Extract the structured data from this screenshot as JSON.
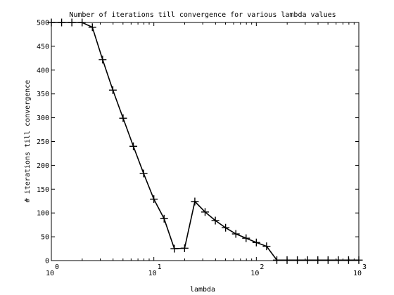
{
  "chart_data": {
    "type": "line",
    "title": "Number of iterations till convergence for various lambda values",
    "xlabel": "lambda",
    "ylabel": "# iterations till convergence",
    "xscale": "log",
    "xlim": [
      1,
      1000
    ],
    "ylim": [
      0,
      500
    ],
    "grid": false,
    "x_ticks": [
      {
        "base": "10",
        "exp": "0"
      },
      {
        "base": "10",
        "exp": "1"
      },
      {
        "base": "10",
        "exp": "2"
      },
      {
        "base": "10",
        "exp": "3"
      }
    ],
    "y_ticks": [
      "0",
      "50",
      "100",
      "150",
      "200",
      "250",
      "300",
      "350",
      "400",
      "450",
      "500"
    ],
    "y_tick_values": [
      0,
      50,
      100,
      150,
      200,
      250,
      300,
      350,
      400,
      450,
      500
    ],
    "marker": "plus",
    "line_color": "#000000",
    "series": [
      {
        "x": [
          1,
          1.259,
          1.585,
          1.995,
          2.512,
          3.162,
          3.981,
          5.012,
          6.31,
          7.943,
          10,
          12.59,
          15.85,
          19.95,
          25.12,
          31.62,
          39.81,
          50.12,
          63.1,
          79.43,
          100,
          125.9,
          158.5,
          199.5,
          251.2,
          316.2,
          398.1,
          501.2,
          631,
          794.3,
          1000
        ],
        "y": [
          500,
          500,
          500,
          500,
          490,
          422,
          358,
          299,
          240,
          183,
          129,
          88,
          25,
          26,
          124,
          102,
          84,
          69,
          56,
          47,
          38,
          30,
          1,
          1,
          1,
          1,
          1,
          1,
          1,
          1,
          1
        ]
      }
    ]
  }
}
